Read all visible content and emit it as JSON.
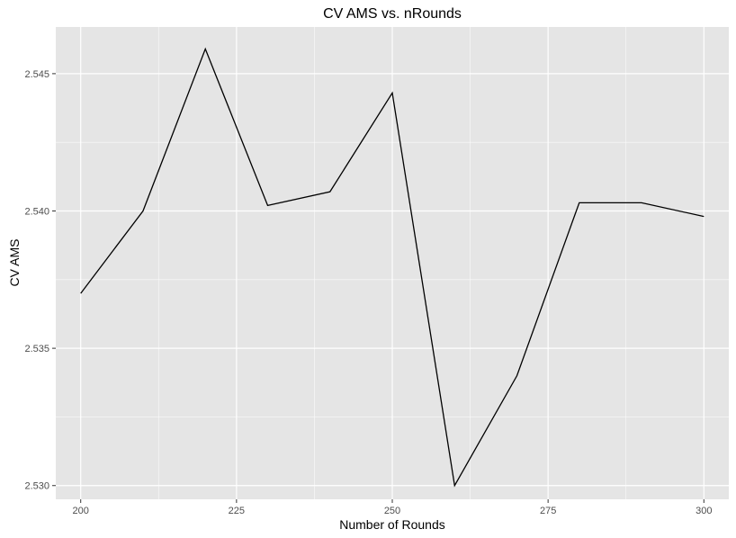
{
  "chart_data": {
    "type": "line",
    "title": "CV AMS vs. nRounds",
    "xlabel": "Number of Rounds",
    "ylabel": "CV AMS",
    "x": [
      200,
      210,
      220,
      230,
      240,
      250,
      260,
      270,
      280,
      290,
      300
    ],
    "series": [
      {
        "values": [
          2.537,
          2.54,
          2.5459,
          2.5402,
          2.5407,
          2.5443,
          2.53,
          2.534,
          2.5403,
          2.5403,
          2.5398
        ]
      }
    ],
    "xlim": [
      196,
      304
    ],
    "ylim": [
      2.5295,
      2.5467
    ],
    "x_ticks": [
      200,
      225,
      250,
      275,
      300
    ],
    "x_tick_labels": [
      "200",
      "225",
      "250",
      "275",
      "300"
    ],
    "y_ticks": [
      2.53,
      2.535,
      2.54,
      2.545
    ],
    "y_tick_labels": [
      "2.530",
      "2.535",
      "2.540",
      "2.545"
    ],
    "grid": true,
    "line_color": "#000000",
    "panel_background": "#e5e5e5",
    "grid_color": "#ffffff"
  }
}
